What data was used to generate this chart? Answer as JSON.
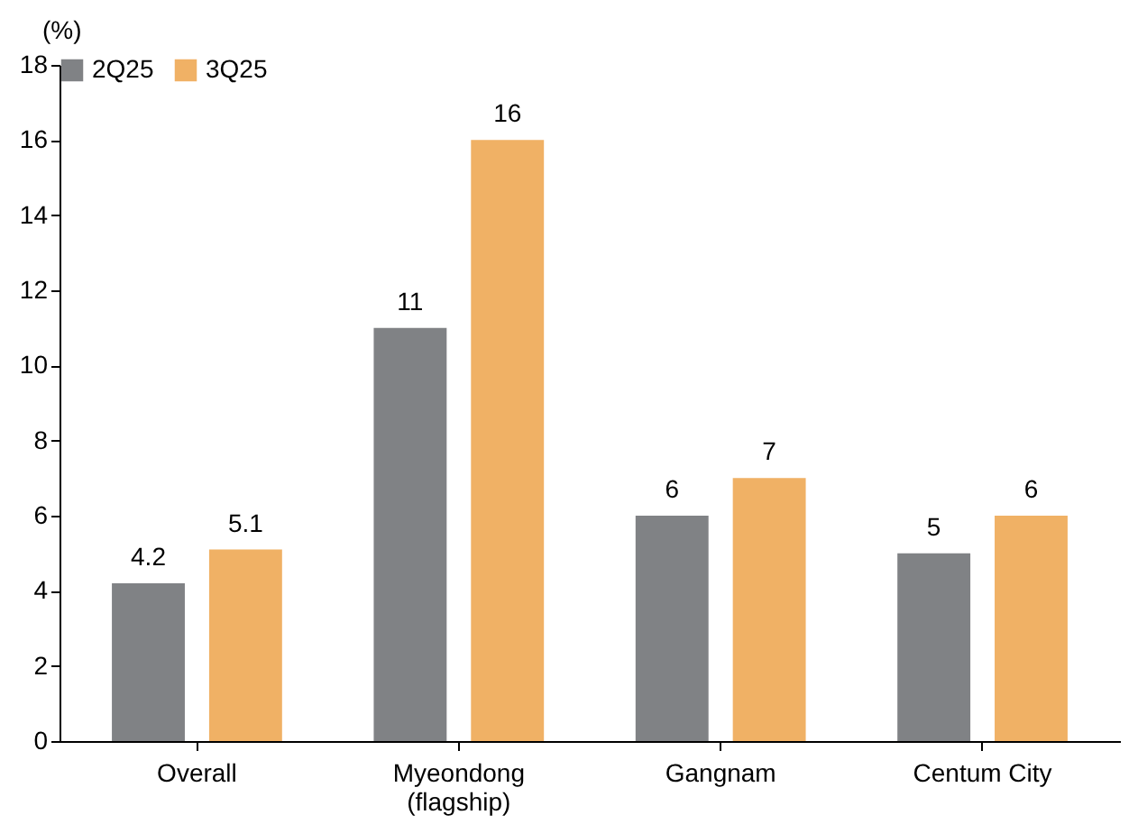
{
  "chart_data": {
    "type": "bar",
    "ylabel": "(%)",
    "categories": [
      "Overall",
      "Myeondong\n(flagship)",
      "Gangnam",
      "Centum City"
    ],
    "series": [
      {
        "name": "2Q25",
        "color": "#808285",
        "values": [
          4.2,
          11,
          6,
          5
        ]
      },
      {
        "name": "3Q25",
        "color": "#f0b165",
        "values": [
          5.1,
          16,
          7,
          6
        ]
      }
    ],
    "ylim": [
      0,
      18
    ],
    "yticks": [
      0,
      2,
      4,
      6,
      8,
      10,
      12,
      14,
      16,
      18
    ],
    "grid": false,
    "legend": "top",
    "data_labels": true
  }
}
